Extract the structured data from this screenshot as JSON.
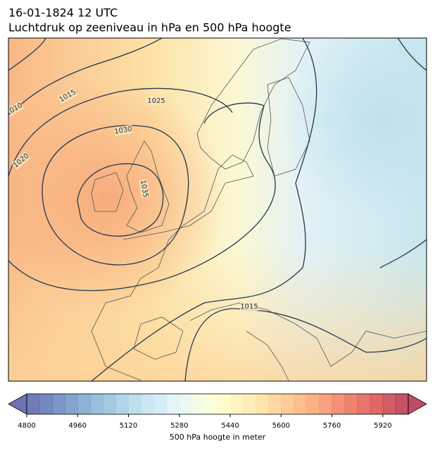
{
  "header": {
    "date": "16-01-1824 12 UTC",
    "title": "Luchtdruk op zeeniveau in hPa en 500 hPa hoogte"
  },
  "isobar_labels": [
    1010,
    1015,
    1025,
    1030,
    1020,
    1035,
    1015
  ],
  "colorbar": {
    "label": "500 hPa hoogte in meter",
    "lim": [
      4800,
      6000
    ],
    "step": 40,
    "ticks": [
      4800,
      4960,
      5120,
      5280,
      5440,
      5600,
      5760,
      5920
    ],
    "colormap": [
      "#313695",
      "#4575b4",
      "#74add1",
      "#abd9e9",
      "#e0f3f8",
      "#ffffbf",
      "#fee090",
      "#fdae61",
      "#f46d43",
      "#d73027",
      "#a50026"
    ]
  }
}
